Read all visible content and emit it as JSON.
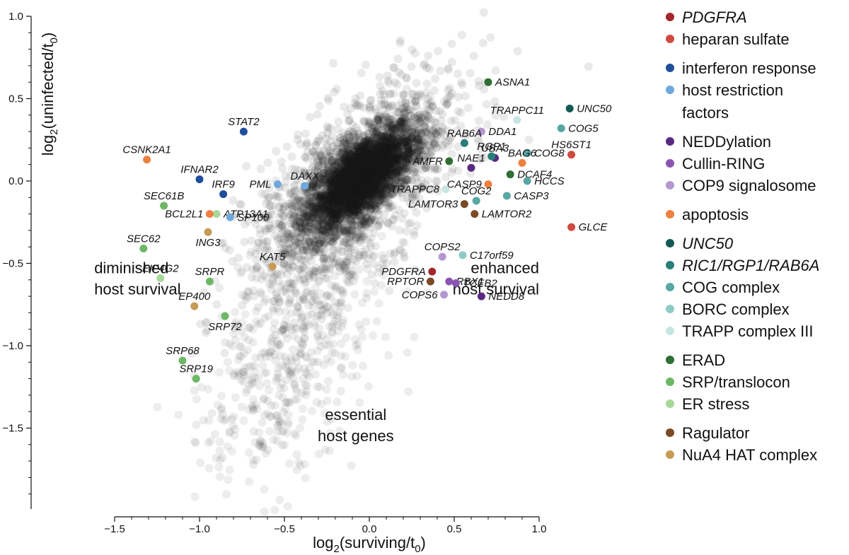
{
  "chart_data": {
    "type": "scatter",
    "title": "",
    "xlabel_base": "log",
    "xlabel_sub": "2",
    "xlabel_rest": "(surviving/t",
    "xlabel_sub2": "0",
    "xlabel_end": ")",
    "ylabel_base": "log",
    "ylabel_sub": "2",
    "ylabel_rest": "(uninfected/t",
    "ylabel_sub2": "0",
    "ylabel_end": ")",
    "xlim": [
      -1.5,
      1.0
    ],
    "ylim": [
      -1.5,
      1.0
    ],
    "xticks": [
      {
        "value": -1.5,
        "label": "−1.5"
      },
      {
        "value": -1.0,
        "label": "−1.0"
      },
      {
        "value": -0.5,
        "label": "−0.5"
      },
      {
        "value": 0.0,
        "label": "0.0"
      },
      {
        "value": 0.5,
        "label": "0.5"
      },
      {
        "value": 1.0,
        "label": "1.0"
      }
    ],
    "yticks": [
      {
        "value": 1.0,
        "label": "1.0"
      },
      {
        "value": 0.5,
        "label": "0.5"
      },
      {
        "value": 0.0,
        "label": "0.0"
      },
      {
        "value": -0.5,
        "label": "−0.5"
      },
      {
        "value": -1.0,
        "label": "−1.0"
      },
      {
        "value": -1.5,
        "label": "−1.5"
      }
    ],
    "grid": false,
    "legend_position": "right",
    "background_points": "dense grey cloud of all other host genes centered near (0, 0)",
    "region_labels": [
      {
        "lines": [
          "diminished",
          "host survival"
        ],
        "x": -1.62,
        "y": -0.56,
        "anchor": "start"
      },
      {
        "lines": [
          "enhanced",
          "host survival"
        ],
        "x": 1.0,
        "y": -0.56,
        "anchor": "end"
      },
      {
        "lines": [
          "essential",
          "host genes"
        ],
        "x": -0.08,
        "y": -1.45,
        "anchor": "middle"
      }
    ],
    "categories": [
      {
        "name": "PDGFRA",
        "color": "#a3262a",
        "italic": true,
        "group": 0
      },
      {
        "name": "heparan sulfate",
        "color": "#cf4a3f",
        "italic": false,
        "group": 0
      },
      {
        "name": "interferon response",
        "color": "#1f4e9a",
        "italic": false,
        "group": 1
      },
      {
        "name": "host restriction",
        "name2": "factors",
        "color": "#6ea8dc",
        "italic": false,
        "group": 1
      },
      {
        "name": "NEDDylation",
        "color": "#5a2a82",
        "italic": false,
        "group": 2
      },
      {
        "name": "Cullin-RING",
        "color": "#8a55b2",
        "italic": false,
        "group": 2
      },
      {
        "name": "COP9 signalosome",
        "color": "#b497cf",
        "italic": false,
        "group": 2
      },
      {
        "name": "apoptosis",
        "color": "#ee8040",
        "italic": false,
        "group": 3
      },
      {
        "name": "UNC50",
        "color": "#145a54",
        "italic": true,
        "group": 4
      },
      {
        "name": "RIC1/RGP1/RAB6A",
        "color": "#2a7d78",
        "italic": true,
        "group": 4
      },
      {
        "name": "COG complex",
        "color": "#58a7a4",
        "italic": false,
        "group": 4
      },
      {
        "name": "BORC complex",
        "color": "#8fcbc5",
        "italic": false,
        "group": 4
      },
      {
        "name": "TRAPP complex III",
        "color": "#c7e6e1",
        "italic": false,
        "group": 4
      },
      {
        "name": "ERAD",
        "color": "#2f6f35",
        "italic": false,
        "group": 5
      },
      {
        "name": "SRP/translocon",
        "color": "#6db866",
        "italic": false,
        "group": 5
      },
      {
        "name": "ER stress",
        "color": "#a8d89a",
        "italic": false,
        "group": 5
      },
      {
        "name": "Ragulator",
        "color": "#7a4a24",
        "italic": false,
        "group": 6
      },
      {
        "name": "NuA4 HAT complex",
        "color": "#c79a55",
        "italic": false,
        "group": 6
      }
    ],
    "points": [
      {
        "label": "ASNA1",
        "x": 0.7,
        "y": 0.6,
        "category": "ERAD",
        "label_pos": "right"
      },
      {
        "label": "UNC50",
        "x": 1.18,
        "y": 0.44,
        "category": "UNC50",
        "label_pos": "right"
      },
      {
        "label": "COG5",
        "x": 1.13,
        "y": 0.32,
        "category": "COG complex",
        "label_pos": "right"
      },
      {
        "label": "TRAPPC11",
        "x": 0.87,
        "y": 0.37,
        "category": "TRAPP complex III",
        "label_pos": "above"
      },
      {
        "label": "DDA1",
        "x": 0.66,
        "y": 0.3,
        "category": "COP9 signalosome",
        "label_pos": "right"
      },
      {
        "label": "UBA3",
        "x": 0.74,
        "y": 0.14,
        "category": "NEDDylation",
        "label_pos": "above"
      },
      {
        "label": "RAB6A",
        "x": 0.56,
        "y": 0.23,
        "category": "RIC1/RGP1/RAB6A",
        "label_pos": "above"
      },
      {
        "label": "RGP1",
        "x": 0.72,
        "y": 0.15,
        "category": "RIC1/RGP1/RAB6A",
        "label_pos": "above"
      },
      {
        "label": "HS6ST1",
        "x": 1.19,
        "y": 0.16,
        "category": "heparan sulfate",
        "label_pos": "above"
      },
      {
        "label": "COG8",
        "x": 0.93,
        "y": 0.17,
        "category": "COG complex",
        "label_pos": "right"
      },
      {
        "label": "BAG6",
        "x": 0.9,
        "y": 0.11,
        "category": "apoptosis",
        "label_pos": "above"
      },
      {
        "label": "AMFR",
        "x": 0.47,
        "y": 0.12,
        "category": "ERAD",
        "label_pos": "left"
      },
      {
        "label": "NAE1",
        "x": 0.6,
        "y": 0.08,
        "category": "NEDDylation",
        "label_pos": "above"
      },
      {
        "label": "DCAF4",
        "x": 0.83,
        "y": 0.04,
        "category": "ERAD",
        "label_pos": "right"
      },
      {
        "label": "HCCS",
        "x": 0.93,
        "y": 0.0,
        "category": "COG complex",
        "label_pos": "right"
      },
      {
        "label": "CASP9",
        "x": 0.7,
        "y": -0.02,
        "category": "apoptosis",
        "label_pos": "left"
      },
      {
        "label": "CASP3",
        "x": 0.81,
        "y": -0.09,
        "category": "COG complex",
        "label_pos": "right"
      },
      {
        "label": "TRAPPC8",
        "x": 0.45,
        "y": -0.05,
        "category": "TRAPP complex III",
        "label_pos": "left"
      },
      {
        "label": "COG2",
        "x": 0.63,
        "y": -0.12,
        "category": "COG complex",
        "label_pos": "above"
      },
      {
        "label": "LAMTOR3",
        "x": 0.56,
        "y": -0.14,
        "category": "Ragulator",
        "label_pos": "left"
      },
      {
        "label": "LAMTOR2",
        "x": 0.62,
        "y": -0.2,
        "category": "Ragulator",
        "label_pos": "right"
      },
      {
        "label": "GLCE",
        "x": 1.19,
        "y": -0.28,
        "category": "heparan sulfate",
        "label_pos": "right"
      },
      {
        "label": "C17orf59",
        "x": 0.55,
        "y": -0.45,
        "category": "BORC complex",
        "label_pos": "right"
      },
      {
        "label": "COPS2",
        "x": 0.43,
        "y": -0.46,
        "category": "COP9 signalosome",
        "label_pos": "above"
      },
      {
        "label": "PDGFRA",
        "x": 0.37,
        "y": -0.55,
        "category": "PDGFRA",
        "label_pos": "left"
      },
      {
        "label": "RBX1",
        "x": 0.47,
        "y": -0.61,
        "category": "Cullin-RING",
        "label_pos": "right"
      },
      {
        "label": "TCEB2",
        "x": 0.51,
        "y": -0.62,
        "category": "Cullin-RING",
        "label_pos": "right"
      },
      {
        "label": "RPTOR",
        "x": 0.36,
        "y": -0.61,
        "category": "Ragulator",
        "label_pos": "left"
      },
      {
        "label": "COPS6",
        "x": 0.44,
        "y": -0.69,
        "category": "COP9 signalosome",
        "label_pos": "left"
      },
      {
        "label": "NEDD8",
        "x": 0.66,
        "y": -0.7,
        "category": "NEDDylation",
        "label_pos": "right"
      },
      {
        "label": "STAT2",
        "x": -0.74,
        "y": 0.3,
        "category": "interferon response",
        "label_pos": "above"
      },
      {
        "label": "CSNK2A1",
        "x": -1.31,
        "y": 0.13,
        "category": "apoptosis",
        "label_pos": "above"
      },
      {
        "label": "IFNAR2",
        "x": -1.0,
        "y": 0.01,
        "category": "interferon response",
        "label_pos": "above"
      },
      {
        "label": "PML",
        "x": -0.54,
        "y": -0.02,
        "category": "host restriction",
        "label_pos": "left"
      },
      {
        "label": "DAXX",
        "x": -0.38,
        "y": -0.03,
        "category": "host restriction",
        "label_pos": "above"
      },
      {
        "label": "IRF9",
        "x": -0.86,
        "y": -0.08,
        "category": "interferon response",
        "label_pos": "above"
      },
      {
        "label": "SEC61B",
        "x": -1.21,
        "y": -0.15,
        "category": "SRP/translocon",
        "label_pos": "above"
      },
      {
        "label": "ATP13A1",
        "x": -0.9,
        "y": -0.2,
        "category": "ER stress",
        "label_pos": "right"
      },
      {
        "label": "BCL2L1",
        "x": -0.94,
        "y": -0.2,
        "category": "apoptosis",
        "label_pos": "left"
      },
      {
        "label": "SP100",
        "x": -0.82,
        "y": -0.22,
        "category": "host restriction",
        "label_pos": "right"
      },
      {
        "label": "ING3",
        "x": -0.95,
        "y": -0.31,
        "category": "NuA4 HAT complex",
        "label_pos": "below"
      },
      {
        "label": "SEC62",
        "x": -1.33,
        "y": -0.41,
        "category": "SRP/translocon",
        "label_pos": "above"
      },
      {
        "label": "KAT5",
        "x": -0.57,
        "y": -0.52,
        "category": "NuA4 HAT complex",
        "label_pos": "above"
      },
      {
        "label": "EIF4G2",
        "x": -1.23,
        "y": -0.59,
        "category": "ER stress",
        "label_pos": "above"
      },
      {
        "label": "SRPR",
        "x": -0.94,
        "y": -0.61,
        "category": "SRP/translocon",
        "label_pos": "above"
      },
      {
        "label": "EP400",
        "x": -1.03,
        "y": -0.76,
        "category": "NuA4 HAT complex",
        "label_pos": "above"
      },
      {
        "label": "SRP72",
        "x": -0.85,
        "y": -0.82,
        "category": "SRP/translocon",
        "label_pos": "below"
      },
      {
        "label": "SRP68",
        "x": -1.1,
        "y": -1.09,
        "category": "SRP/translocon",
        "label_pos": "above"
      },
      {
        "label": "SRP19",
        "x": -1.02,
        "y": -1.2,
        "category": "SRP/translocon",
        "label_pos": "above"
      }
    ]
  }
}
